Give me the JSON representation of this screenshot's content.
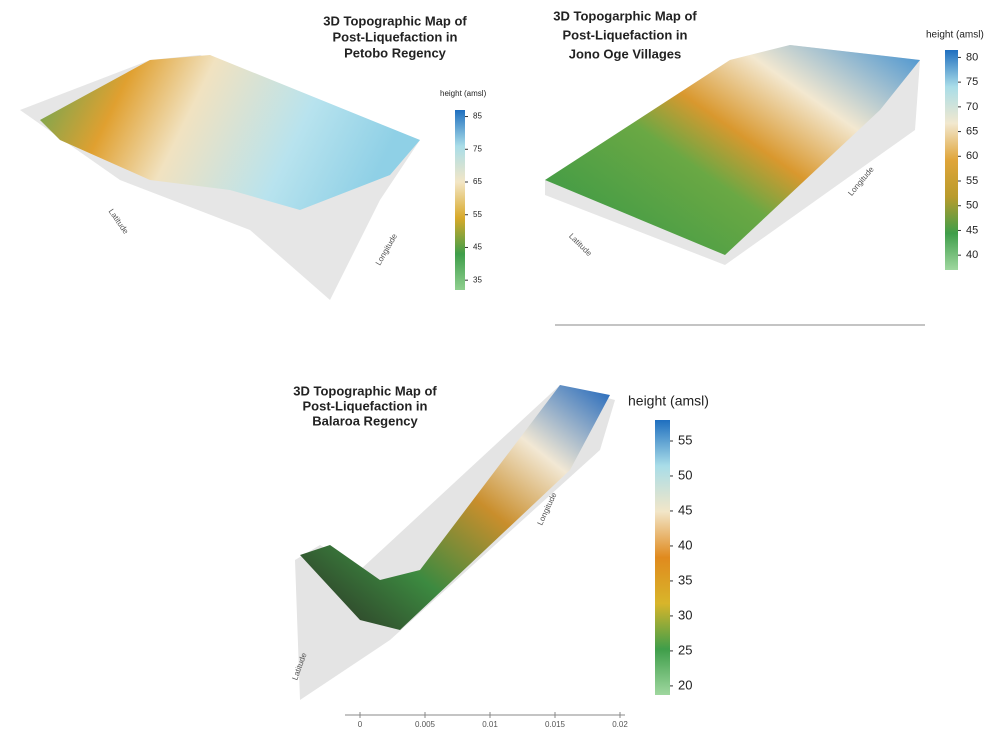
{
  "panels": [
    {
      "title": [
        "3D Topographic Map of",
        "Post-Liquefaction in",
        "Petobo Regency"
      ],
      "colorbar": {
        "label": "height (amsl)",
        "ticks": [
          35,
          45,
          55,
          65,
          75,
          85
        ],
        "lim": [
          32,
          87
        ],
        "colors": [
          "#8fcf8f",
          "#3f9e4a",
          "#d8a92a",
          "#f3e6c6",
          "#a9dde8",
          "#1f6fbf"
        ]
      },
      "axis_labels": [
        "Latitude",
        "Longitude"
      ]
    },
    {
      "title": [
        "3D Topogarphic Map of",
        "Post-Liquefaction in",
        "Jono Oge Villages"
      ],
      "colorbar": {
        "label": "height (amsl)",
        "ticks": [
          40,
          45,
          50,
          55,
          60,
          65,
          70,
          75,
          80
        ],
        "lim": [
          37,
          81.5
        ],
        "colors": [
          "#9fd79f",
          "#3f9e4a",
          "#b99b2c",
          "#e0a53a",
          "#f2e8cf",
          "#a9dde8",
          "#1f6fbf"
        ]
      },
      "axis_labels": [
        "Latitude",
        "Longitude"
      ]
    },
    {
      "title": [
        "3D Topographic Map of",
        "Post-Liquefaction in",
        "Balaroa Regency"
      ],
      "colorbar": {
        "label": "height (amsl)",
        "ticks": [
          20,
          25,
          30,
          35,
          40,
          45,
          50,
          55
        ],
        "lim": [
          18.7,
          58
        ],
        "colors": [
          "#9fd79f",
          "#3f9e4a",
          "#d8b52a",
          "#e08a1e",
          "#f2e6c8",
          "#a9dde8",
          "#1f6fbf"
        ]
      },
      "axis_labels": [
        "Latitude",
        "Longitude"
      ],
      "scale_bar": [
        0,
        0.005,
        0.01,
        0.015,
        0.02
      ]
    }
  ]
}
